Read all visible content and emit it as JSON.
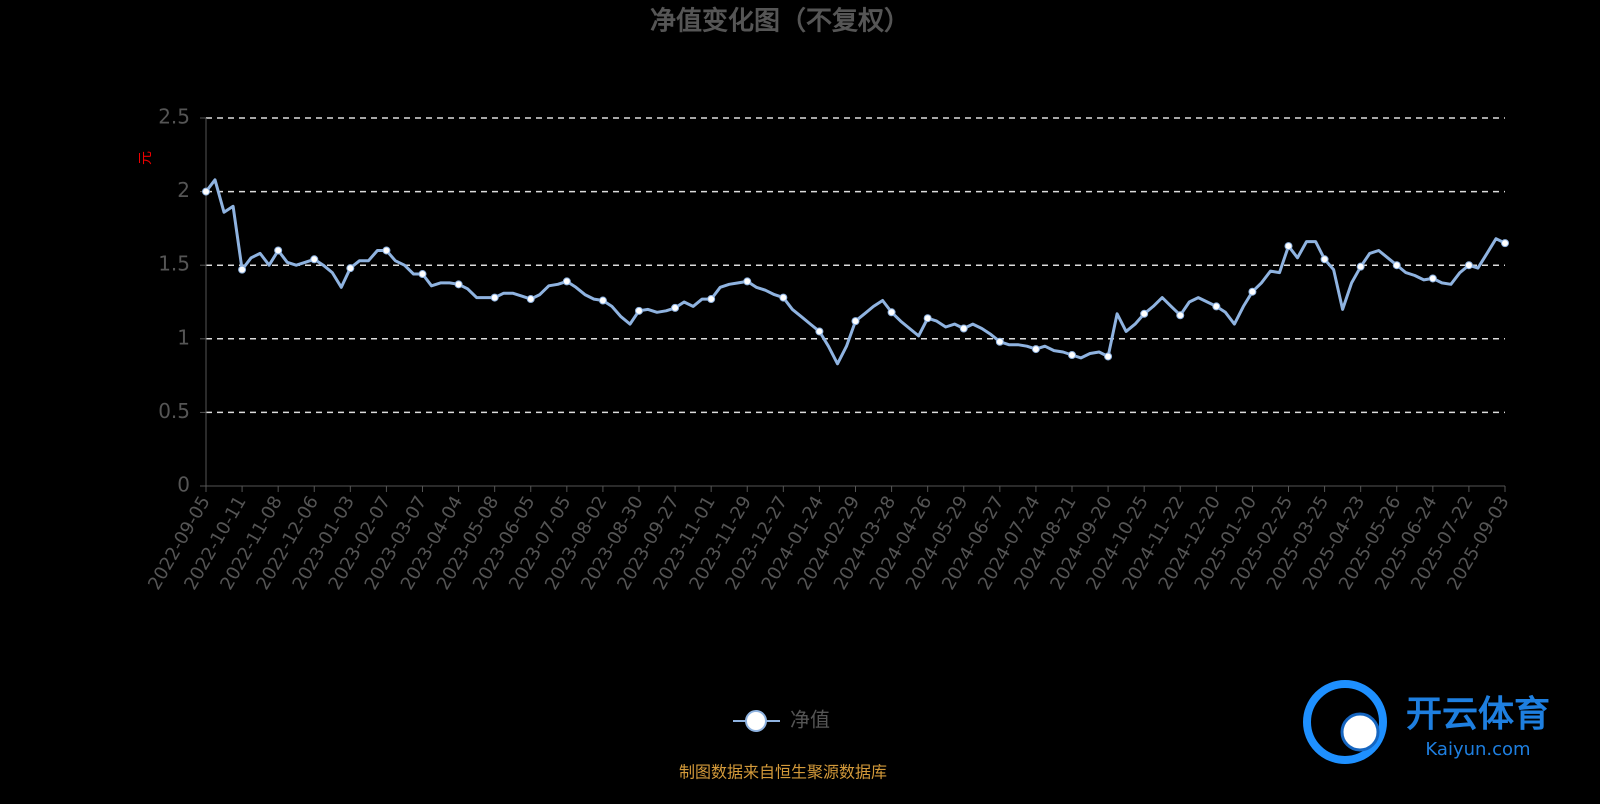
{
  "chart_data": {
    "type": "line",
    "title": "净值变化图（不复权）",
    "y_label": "元",
    "categories": [
      "2022-09-05",
      null,
      null,
      null,
      "2022-10-11",
      null,
      null,
      null,
      "2022-11-08",
      null,
      null,
      null,
      "2022-12-06",
      null,
      null,
      null,
      "2023-01-03",
      null,
      null,
      null,
      "2023-02-07",
      null,
      null,
      null,
      "2023-03-07",
      null,
      null,
      null,
      "2023-04-04",
      null,
      null,
      null,
      "2023-05-08",
      null,
      null,
      null,
      "2023-06-05",
      null,
      null,
      null,
      "2023-07-05",
      null,
      null,
      null,
      "2023-08-02",
      null,
      null,
      null,
      "2023-08-30",
      null,
      null,
      null,
      "2023-09-27",
      null,
      null,
      null,
      "2023-11-01",
      null,
      null,
      null,
      "2023-11-29",
      null,
      null,
      null,
      "2023-12-27",
      null,
      null,
      null,
      "2024-01-24",
      null,
      null,
      null,
      "2024-02-29",
      null,
      null,
      null,
      "2024-03-28",
      null,
      null,
      null,
      "2024-04-26",
      null,
      null,
      null,
      "2024-05-29",
      null,
      null,
      null,
      "2024-06-27",
      null,
      null,
      null,
      "2024-07-24",
      null,
      null,
      null,
      "2024-08-21",
      null,
      null,
      null,
      "2024-09-20",
      null,
      null,
      null,
      "2024-10-25",
      null,
      null,
      null,
      "2024-11-22",
      null,
      null,
      null,
      "2024-12-20",
      null,
      null,
      null,
      "2025-01-20",
      null,
      null,
      null,
      "2025-02-25",
      null,
      null,
      null,
      "2025-03-25",
      null,
      null,
      null,
      "2025-04-23",
      null,
      null,
      null,
      "2025-05-26",
      null,
      null,
      null,
      "2025-06-24",
      null,
      null,
      null,
      "2025-07-22",
      null,
      null,
      null,
      "2025-09-03"
    ],
    "series": [
      {
        "name": "净值",
        "color": "#8fb3e0",
        "values": [
          2.0,
          2.08,
          1.86,
          1.9,
          1.47,
          1.55,
          1.58,
          1.5,
          1.6,
          1.52,
          1.5,
          1.52,
          1.54,
          1.5,
          1.45,
          1.35,
          1.48,
          1.53,
          1.53,
          1.6,
          1.6,
          1.53,
          1.5,
          1.44,
          1.44,
          1.36,
          1.38,
          1.38,
          1.37,
          1.34,
          1.28,
          1.28,
          1.28,
          1.31,
          1.31,
          1.29,
          1.27,
          1.3,
          1.36,
          1.37,
          1.39,
          1.35,
          1.3,
          1.27,
          1.26,
          1.22,
          1.15,
          1.1,
          1.19,
          1.2,
          1.18,
          1.19,
          1.21,
          1.25,
          1.22,
          1.27,
          1.27,
          1.35,
          1.37,
          1.38,
          1.39,
          1.35,
          1.33,
          1.3,
          1.28,
          1.2,
          1.15,
          1.1,
          1.05,
          0.95,
          0.83,
          0.95,
          1.12,
          1.17,
          1.22,
          1.26,
          1.18,
          1.12,
          1.07,
          1.02,
          1.14,
          1.12,
          1.08,
          1.1,
          1.07,
          1.1,
          1.07,
          1.03,
          0.98,
          0.96,
          0.96,
          0.95,
          0.93,
          0.95,
          0.92,
          0.91,
          0.89,
          0.87,
          0.9,
          0.91,
          0.88,
          1.17,
          1.05,
          1.1,
          1.17,
          1.22,
          1.28,
          1.22,
          1.16,
          1.25,
          1.28,
          1.25,
          1.22,
          1.18,
          1.1,
          1.22,
          1.32,
          1.38,
          1.46,
          1.45,
          1.63,
          1.55,
          1.66,
          1.66,
          1.54,
          1.47,
          1.2,
          1.38,
          1.49,
          1.58,
          1.6,
          1.55,
          1.5,
          1.45,
          1.43,
          1.4,
          1.41,
          1.38,
          1.37,
          1.45,
          1.5,
          1.48,
          1.58,
          1.68,
          1.65
        ]
      }
    ],
    "ylim": [
      0,
      2.5
    ],
    "yticks": [
      0,
      0.5,
      1,
      1.5,
      2,
      2.5
    ],
    "grid": true,
    "source": "制图数据来自恒生聚源数据库",
    "watermark": [
      "开云体育",
      "Kaiyun.com"
    ]
  }
}
